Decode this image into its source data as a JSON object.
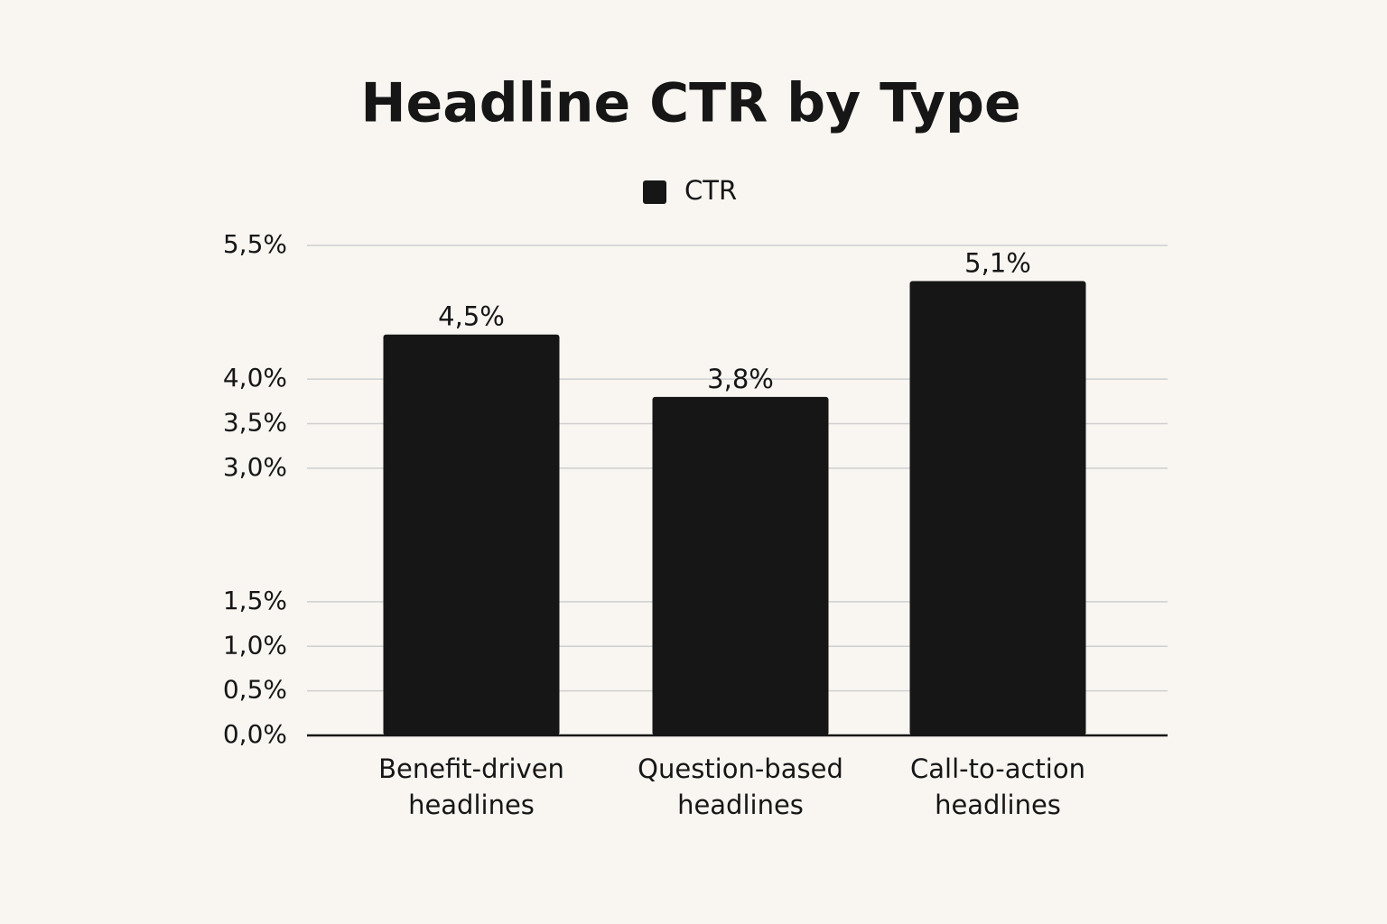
{
  "chart_data": {
    "type": "bar",
    "title": "Headline CTR by Type",
    "categories": [
      "Benefit-driven headlines",
      "Question-based headlines",
      "Call-to-action headlines"
    ],
    "series": [
      {
        "name": "CTR",
        "color": "#161616",
        "values": [
          4.5,
          3.8,
          5.1
        ],
        "value_labels": [
          "4,5%",
          "3,8%",
          "5,1%"
        ]
      }
    ],
    "ylim": [
      0,
      5.5
    ],
    "yticks": [
      {
        "value": 0,
        "label": "0,0%"
      },
      {
        "value": 0.5,
        "label": "0,5%"
      },
      {
        "value": 1.0,
        "label": "1,0%"
      },
      {
        "value": 1.5,
        "label": "1,5%"
      },
      {
        "value": 3.0,
        "label": "3,0%"
      },
      {
        "value": 3.5,
        "label": "3,5%"
      },
      {
        "value": 4.0,
        "label": "4,0%"
      },
      {
        "value": 5.5,
        "label": "5,5%"
      }
    ],
    "grid": true,
    "legend": "top"
  }
}
